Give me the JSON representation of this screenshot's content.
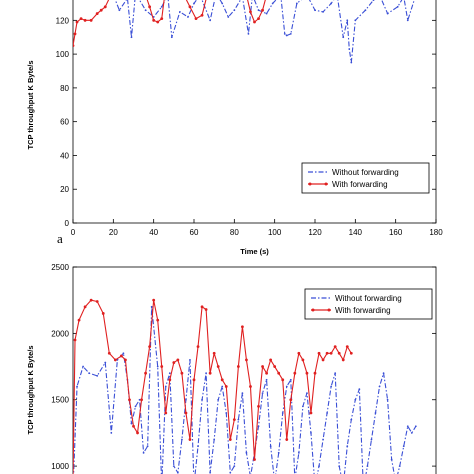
{
  "chart_data": [
    {
      "type": "line",
      "panel_label": "a",
      "xlabel": "Time (s)",
      "ylabel": "TCP throughput K Byte/s",
      "xlim": [
        0,
        180
      ],
      "ylim": [
        0,
        135
      ],
      "xticks": [
        0,
        20,
        40,
        60,
        80,
        100,
        120,
        140,
        160,
        180
      ],
      "yticks": [
        0,
        20,
        40,
        60,
        80,
        100,
        120
      ],
      "legend_position": "lower-right",
      "series": [
        {
          "name": "Without forwarding",
          "color": "#3a4fd6",
          "style": "dashed",
          "x": [
            20,
            23,
            27,
            29,
            31,
            36,
            40,
            44,
            47,
            49,
            53,
            57,
            60,
            63,
            68,
            71,
            74,
            77,
            80,
            84,
            87,
            89,
            92,
            96,
            99,
            103,
            105,
            106,
            108,
            111,
            116,
            120,
            124,
            128,
            131,
            134,
            136,
            137,
            138,
            140,
            145,
            149,
            152,
            156,
            161,
            164,
            166,
            170
          ],
          "y": [
            135,
            126,
            133,
            110,
            136,
            126,
            122,
            128,
            135,
            110,
            125,
            122,
            130,
            135,
            120,
            136,
            130,
            122,
            126,
            134,
            112,
            135,
            126,
            124,
            130,
            135,
            112,
            111,
            112,
            130,
            135,
            126,
            125,
            130,
            135,
            110,
            120,
            103,
            95,
            120,
            126,
            132,
            135,
            124,
            128,
            134,
            120,
            135
          ]
        },
        {
          "name": "With forwarding",
          "color": "#e02020",
          "style": "solid",
          "x": [
            0,
            1,
            2,
            4,
            6,
            9,
            12,
            14,
            16,
            18,
            19.5,
            36,
            38,
            40,
            42,
            44,
            45.5,
            55,
            58,
            61,
            64,
            66.5,
            86,
            88,
            90,
            92,
            94,
            96
          ],
          "y": [
            105,
            112,
            119,
            121,
            120,
            120,
            124,
            126,
            128,
            133,
            135,
            135,
            128,
            120,
            119,
            121,
            135,
            135,
            128,
            121,
            123,
            135,
            135,
            125,
            119,
            121,
            126,
            135
          ]
        }
      ]
    },
    {
      "type": "line",
      "xlabel": "",
      "ylabel": "TCP throughput K Byte/s",
      "xlim": [
        0,
        180
      ],
      "ylim": [
        820,
        2500
      ],
      "yticks": [
        1000,
        1500,
        2000,
        2500
      ],
      "legend_position": "top-right",
      "series": [
        {
          "name": "Without forwarding",
          "color": "#3a4fd6",
          "style": "dashed",
          "x": [
            0,
            2,
            5,
            8,
            12,
            16,
            19,
            22,
            25,
            27,
            29,
            31,
            33,
            35,
            37,
            39,
            42,
            44,
            46,
            48,
            50,
            52,
            54,
            56,
            58,
            60,
            62,
            64,
            66,
            68,
            70,
            72,
            74,
            76,
            78,
            80,
            82,
            84,
            86,
            88,
            90,
            92,
            94,
            96,
            98,
            100,
            102,
            104,
            106,
            108,
            110,
            112,
            114,
            116,
            118,
            120,
            122,
            124,
            126,
            128,
            130,
            132,
            134,
            136,
            138,
            140,
            142,
            144,
            146,
            148,
            150,
            152,
            154,
            156,
            158,
            160,
            162,
            164,
            166,
            168,
            170
          ],
          "y": [
            820,
            1600,
            1750,
            1700,
            1680,
            1780,
            1250,
            1800,
            1850,
            1650,
            1320,
            1450,
            1500,
            1100,
            1150,
            2200,
            1750,
            850,
            1600,
            1700,
            1000,
            950,
            1200,
            1500,
            1800,
            860,
            1150,
            1500,
            1700,
            950,
            1200,
            1500,
            1600,
            1400,
            950,
            1000,
            1350,
            1550,
            1100,
            920,
            1100,
            1300,
            1550,
            1650,
            1150,
            880,
            1100,
            1400,
            1600,
            1650,
            900,
            1100,
            1450,
            1550,
            1250,
            850,
            1000,
            1200,
            1400,
            1600,
            1700,
            1000,
            850,
            1150,
            1350,
            1500,
            1580,
            830,
            1000,
            1200,
            1400,
            1600,
            1700,
            1500,
            1050,
            880,
            1000,
            1150,
            1300,
            1250,
            1300
          ]
        },
        {
          "name": "With forwarding",
          "color": "#e02020",
          "style": "solid",
          "x": [
            0,
            1,
            3,
            6,
            9,
            12,
            15,
            18,
            21,
            24,
            26,
            28,
            30,
            32,
            34,
            36,
            38,
            40,
            42,
            44,
            46,
            48,
            50,
            52,
            54,
            56,
            58,
            60,
            62,
            64,
            66,
            68,
            70,
            72,
            74,
            76,
            78,
            80,
            82,
            84,
            86,
            88,
            90,
            92,
            94,
            96,
            98,
            100,
            102,
            104,
            106,
            108,
            110,
            112,
            114,
            116,
            118,
            120,
            122,
            124,
            126,
            128,
            130,
            132,
            134,
            136,
            138
          ],
          "y": [
            900,
            1950,
            2100,
            2200,
            2250,
            2240,
            2150,
            1850,
            1800,
            1830,
            1800,
            1500,
            1300,
            1250,
            1500,
            1700,
            1900,
            2250,
            2100,
            1750,
            1400,
            1650,
            1780,
            1800,
            1700,
            1400,
            1200,
            1650,
            1900,
            2200,
            2180,
            1700,
            1850,
            1750,
            1650,
            1600,
            1200,
            1350,
            1750,
            2050,
            1800,
            1600,
            1050,
            1450,
            1750,
            1700,
            1800,
            1750,
            1700,
            1650,
            1200,
            1500,
            1700,
            1850,
            1800,
            1700,
            1400,
            1700,
            1850,
            1800,
            1850,
            1850,
            1900,
            1850,
            1800,
            1900,
            1850
          ]
        }
      ]
    }
  ]
}
